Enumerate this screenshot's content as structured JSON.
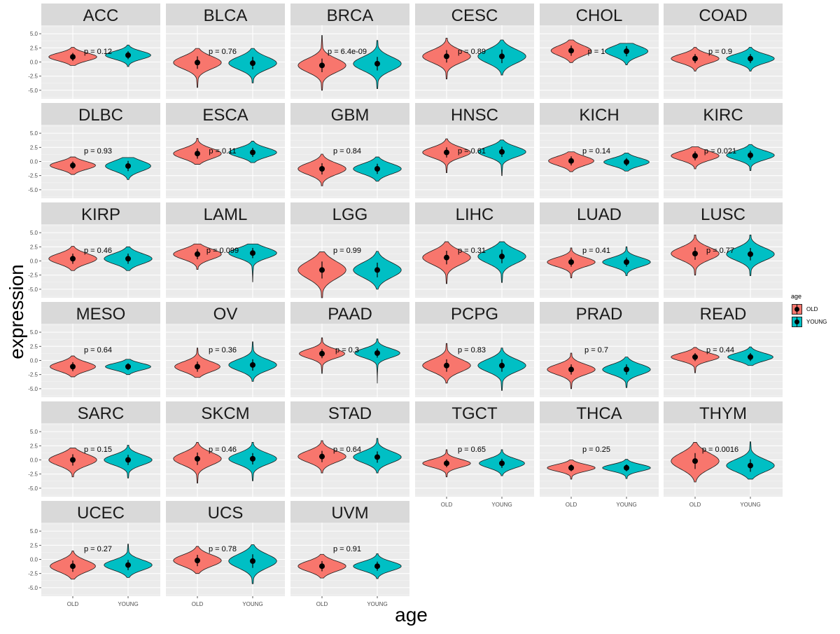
{
  "chart_data": {
    "type": "violin",
    "xlabel": "age",
    "ylabel": "expression",
    "categories": [
      "OLD",
      "YOUNG"
    ],
    "ylim": [
      -6.5,
      6.5
    ],
    "yticks": [
      -5.0,
      -2.5,
      0.0,
      2.5,
      5.0
    ],
    "ytick_labels": [
      "-5.0",
      "-2.5",
      "0.0",
      "2.5",
      "5.0"
    ],
    "legend": {
      "title": "age",
      "placement": "right",
      "items": [
        {
          "label": "OLD",
          "color": "#F8766D"
        },
        {
          "label": "YOUNG",
          "color": "#00BFC4"
        }
      ]
    },
    "panels": [
      {
        "name": "ACC",
        "p": "p = 0.12",
        "old": {
          "mean": 0.9,
          "sd": 0.7,
          "min": -0.6,
          "max": 2.6,
          "w": 0.95
        },
        "young": {
          "mean": 1.2,
          "sd": 0.7,
          "min": -0.8,
          "max": 3.0,
          "w": 0.9
        }
      },
      {
        "name": "BLCA",
        "p": "p = 0.76",
        "old": {
          "mean": -0.1,
          "sd": 1.1,
          "min": -4.5,
          "max": 2.4,
          "w": 0.95
        },
        "young": {
          "mean": -0.2,
          "sd": 1.1,
          "min": -3.7,
          "max": 2.4,
          "w": 0.95
        }
      },
      {
        "name": "BRCA",
        "p": "p = 6.4e-09",
        "old": {
          "mean": -0.6,
          "sd": 1.2,
          "min": -5.0,
          "max": 4.7,
          "w": 0.95
        },
        "young": {
          "mean": -0.3,
          "sd": 1.2,
          "min": -4.7,
          "max": 3.8,
          "w": 0.95
        }
      },
      {
        "name": "CESC",
        "p": "p = 0.89",
        "old": {
          "mean": 1.0,
          "sd": 1.1,
          "min": -3.0,
          "max": 4.2,
          "w": 0.95
        },
        "young": {
          "mean": 1.0,
          "sd": 1.2,
          "min": -2.3,
          "max": 3.9,
          "w": 0.95
        }
      },
      {
        "name": "CHOL",
        "p": "p = 1",
        "old": {
          "mean": 2.0,
          "sd": 0.9,
          "min": -0.1,
          "max": 3.9,
          "w": 0.8
        },
        "young": {
          "mean": 1.9,
          "sd": 0.9,
          "min": -0.5,
          "max": 3.3,
          "w": 0.85
        }
      },
      {
        "name": "COAD",
        "p": "p = 0.9",
        "old": {
          "mean": 0.6,
          "sd": 0.8,
          "min": -1.6,
          "max": 2.6,
          "w": 0.95
        },
        "young": {
          "mean": 0.6,
          "sd": 0.8,
          "min": -1.6,
          "max": 2.6,
          "w": 0.95
        }
      },
      {
        "name": "DLBC",
        "p": "p = 0.93",
        "old": {
          "mean": -0.7,
          "sd": 0.7,
          "min": -2.3,
          "max": 0.8,
          "w": 0.9
        },
        "young": {
          "mean": -0.8,
          "sd": 0.9,
          "min": -3.2,
          "max": 0.7,
          "w": 0.9
        }
      },
      {
        "name": "ESCA",
        "p": "p = 0.11",
        "old": {
          "mean": 1.4,
          "sd": 0.9,
          "min": -0.5,
          "max": 4.1,
          "w": 0.95
        },
        "young": {
          "mean": 1.6,
          "sd": 0.8,
          "min": -0.2,
          "max": 3.6,
          "w": 0.95
        }
      },
      {
        "name": "GBM",
        "p": "p = 0.84",
        "old": {
          "mean": -1.3,
          "sd": 1.0,
          "min": -4.3,
          "max": 1.3,
          "w": 0.95
        },
        "young": {
          "mean": -1.3,
          "sd": 0.9,
          "min": -3.5,
          "max": 0.8,
          "w": 0.95
        }
      },
      {
        "name": "HNSC",
        "p": "p = 0.61",
        "old": {
          "mean": 1.6,
          "sd": 0.9,
          "min": -2.0,
          "max": 4.0,
          "w": 0.95
        },
        "young": {
          "mean": 1.7,
          "sd": 0.9,
          "min": -2.5,
          "max": 3.8,
          "w": 0.95
        }
      },
      {
        "name": "KICH",
        "p": "p = 0.14",
        "old": {
          "mean": 0.1,
          "sd": 0.8,
          "min": -1.8,
          "max": 1.7,
          "w": 0.9
        },
        "young": {
          "mean": -0.1,
          "sd": 0.7,
          "min": -1.7,
          "max": 1.5,
          "w": 0.9
        }
      },
      {
        "name": "KIRC",
        "p": "p = 0.021",
        "old": {
          "mean": 1.0,
          "sd": 0.8,
          "min": -1.3,
          "max": 2.6,
          "w": 0.95
        },
        "young": {
          "mean": 1.1,
          "sd": 0.8,
          "min": -1.6,
          "max": 3.0,
          "w": 0.95
        }
      },
      {
        "name": "KIRP",
        "p": "p = 0.46",
        "old": {
          "mean": 0.4,
          "sd": 0.9,
          "min": -1.7,
          "max": 2.6,
          "w": 0.95
        },
        "young": {
          "mean": 0.4,
          "sd": 0.9,
          "min": -1.7,
          "max": 2.5,
          "w": 0.95
        }
      },
      {
        "name": "LAML",
        "p": "p = 0.099",
        "old": {
          "mean": 1.2,
          "sd": 0.9,
          "min": -1.5,
          "max": 3.0,
          "w": 0.95
        },
        "young": {
          "mean": 1.4,
          "sd": 0.9,
          "min": -3.7,
          "max": 3.0,
          "w": 0.95
        }
      },
      {
        "name": "LGG",
        "p": "p = 0.99",
        "old": {
          "mean": -1.6,
          "sd": 1.5,
          "min": -6.5,
          "max": 1.6,
          "w": 0.95
        },
        "young": {
          "mean": -1.6,
          "sd": 1.3,
          "min": -5.0,
          "max": 1.7,
          "w": 0.95
        }
      },
      {
        "name": "LIHC",
        "p": "p = 0.31",
        "old": {
          "mean": 0.6,
          "sd": 1.2,
          "min": -4.0,
          "max": 3.4,
          "w": 0.95
        },
        "young": {
          "mean": 0.8,
          "sd": 1.2,
          "min": -3.8,
          "max": 3.4,
          "w": 0.95
        }
      },
      {
        "name": "LUAD",
        "p": "p = 0.41",
        "old": {
          "mean": -0.2,
          "sd": 0.8,
          "min": -3.0,
          "max": 2.3,
          "w": 0.95
        },
        "young": {
          "mean": -0.2,
          "sd": 0.8,
          "min": -2.6,
          "max": 2.5,
          "w": 0.95
        }
      },
      {
        "name": "LUSC",
        "p": "p = 0.77",
        "old": {
          "mean": 1.3,
          "sd": 1.1,
          "min": -2.5,
          "max": 4.6,
          "w": 0.95
        },
        "young": {
          "mean": 1.2,
          "sd": 1.1,
          "min": -2.6,
          "max": 4.6,
          "w": 0.95
        }
      },
      {
        "name": "MESO",
        "p": "p = 0.64",
        "old": {
          "mean": -1.1,
          "sd": 0.8,
          "min": -2.9,
          "max": 0.8,
          "w": 0.9
        },
        "young": {
          "mean": -1.1,
          "sd": 0.6,
          "min": -2.5,
          "max": 0.2,
          "w": 0.9
        }
      },
      {
        "name": "OV",
        "p": "p = 0.36",
        "old": {
          "mean": -1.1,
          "sd": 0.9,
          "min": -3.0,
          "max": 2.2,
          "w": 0.9
        },
        "young": {
          "mean": -0.8,
          "sd": 1.0,
          "min": -3.7,
          "max": 3.3,
          "w": 0.95
        }
      },
      {
        "name": "PAAD",
        "p": "p = 0.3",
        "old": {
          "mean": 1.2,
          "sd": 0.8,
          "min": -2.3,
          "max": 4.0,
          "w": 0.9
        },
        "young": {
          "mean": 1.3,
          "sd": 0.8,
          "min": -4.0,
          "max": 3.8,
          "w": 0.9
        }
      },
      {
        "name": "PCPG",
        "p": "p = 0.83",
        "old": {
          "mean": -0.9,
          "sd": 1.1,
          "min": -4.0,
          "max": 3.0,
          "w": 0.95
        },
        "young": {
          "mean": -0.9,
          "sd": 1.1,
          "min": -5.3,
          "max": 2.2,
          "w": 0.95
        }
      },
      {
        "name": "PRAD",
        "p": "p = 0.7",
        "old": {
          "mean": -1.6,
          "sd": 0.9,
          "min": -5.0,
          "max": 1.3,
          "w": 0.95
        },
        "young": {
          "mean": -1.6,
          "sd": 0.9,
          "min": -4.8,
          "max": 0.6,
          "w": 0.95
        }
      },
      {
        "name": "READ",
        "p": "p = 0.44",
        "old": {
          "mean": 0.6,
          "sd": 0.7,
          "min": -2.2,
          "max": 2.3,
          "w": 0.95
        },
        "young": {
          "mean": 0.6,
          "sd": 0.7,
          "min": -0.9,
          "max": 2.4,
          "w": 0.9
        }
      },
      {
        "name": "SARC",
        "p": "p = 0.15",
        "old": {
          "mean": 0.0,
          "sd": 1.0,
          "min": -3.0,
          "max": 2.1,
          "w": 0.95
        },
        "young": {
          "mean": 0.0,
          "sd": 0.9,
          "min": -3.2,
          "max": 2.6,
          "w": 0.95
        }
      },
      {
        "name": "SKCM",
        "p": "p = 0.46",
        "old": {
          "mean": 0.2,
          "sd": 1.1,
          "min": -4.1,
          "max": 3.1,
          "w": 0.95
        },
        "young": {
          "mean": 0.2,
          "sd": 1.0,
          "min": -3.7,
          "max": 3.1,
          "w": 0.95
        }
      },
      {
        "name": "STAD",
        "p": "p = 0.64",
        "old": {
          "mean": 0.6,
          "sd": 1.0,
          "min": -2.3,
          "max": 3.4,
          "w": 0.95
        },
        "young": {
          "mean": 0.5,
          "sd": 1.0,
          "min": -2.3,
          "max": 3.8,
          "w": 0.95
        }
      },
      {
        "name": "TGCT",
        "p": "p = 0.65",
        "old": {
          "mean": -0.6,
          "sd": 0.7,
          "min": -3.0,
          "max": 1.8,
          "w": 0.95
        },
        "young": {
          "mean": -0.6,
          "sd": 0.8,
          "min": -2.8,
          "max": 1.8,
          "w": 0.9
        }
      },
      {
        "name": "THCA",
        "p": "p = 0.25",
        "old": {
          "mean": -1.4,
          "sd": 0.6,
          "min": -3.4,
          "max": 0.0,
          "w": 0.95
        },
        "young": {
          "mean": -1.4,
          "sd": 0.6,
          "min": -3.3,
          "max": 0.1,
          "w": 0.95
        }
      },
      {
        "name": "THYM",
        "p": "p = 0.0016",
        "old": {
          "mean": -0.2,
          "sd": 1.4,
          "min": -3.9,
          "max": 3.1,
          "w": 0.95
        },
        "young": {
          "mean": -1.0,
          "sd": 1.1,
          "min": -3.4,
          "max": 3.2,
          "w": 0.95
        }
      },
      {
        "name": "UCEC",
        "p": "p = 0.27",
        "old": {
          "mean": -1.2,
          "sd": 1.0,
          "min": -3.5,
          "max": 1.5,
          "w": 0.9
        },
        "young": {
          "mean": -1.0,
          "sd": 0.9,
          "min": -3.2,
          "max": 2.7,
          "w": 0.95
        }
      },
      {
        "name": "UCS",
        "p": "p = 0.78",
        "old": {
          "mean": -0.2,
          "sd": 1.0,
          "min": -2.5,
          "max": 2.3,
          "w": 0.95
        },
        "young": {
          "mean": -0.3,
          "sd": 1.2,
          "min": -4.3,
          "max": 2.6,
          "w": 0.95
        }
      },
      {
        "name": "UVM",
        "p": "p = 0.91",
        "old": {
          "mean": -1.2,
          "sd": 0.9,
          "min": -3.3,
          "max": 0.9,
          "w": 0.95
        },
        "young": {
          "mean": -1.2,
          "sd": 0.8,
          "min": -3.4,
          "max": 1.0,
          "w": 0.95
        }
      }
    ]
  }
}
